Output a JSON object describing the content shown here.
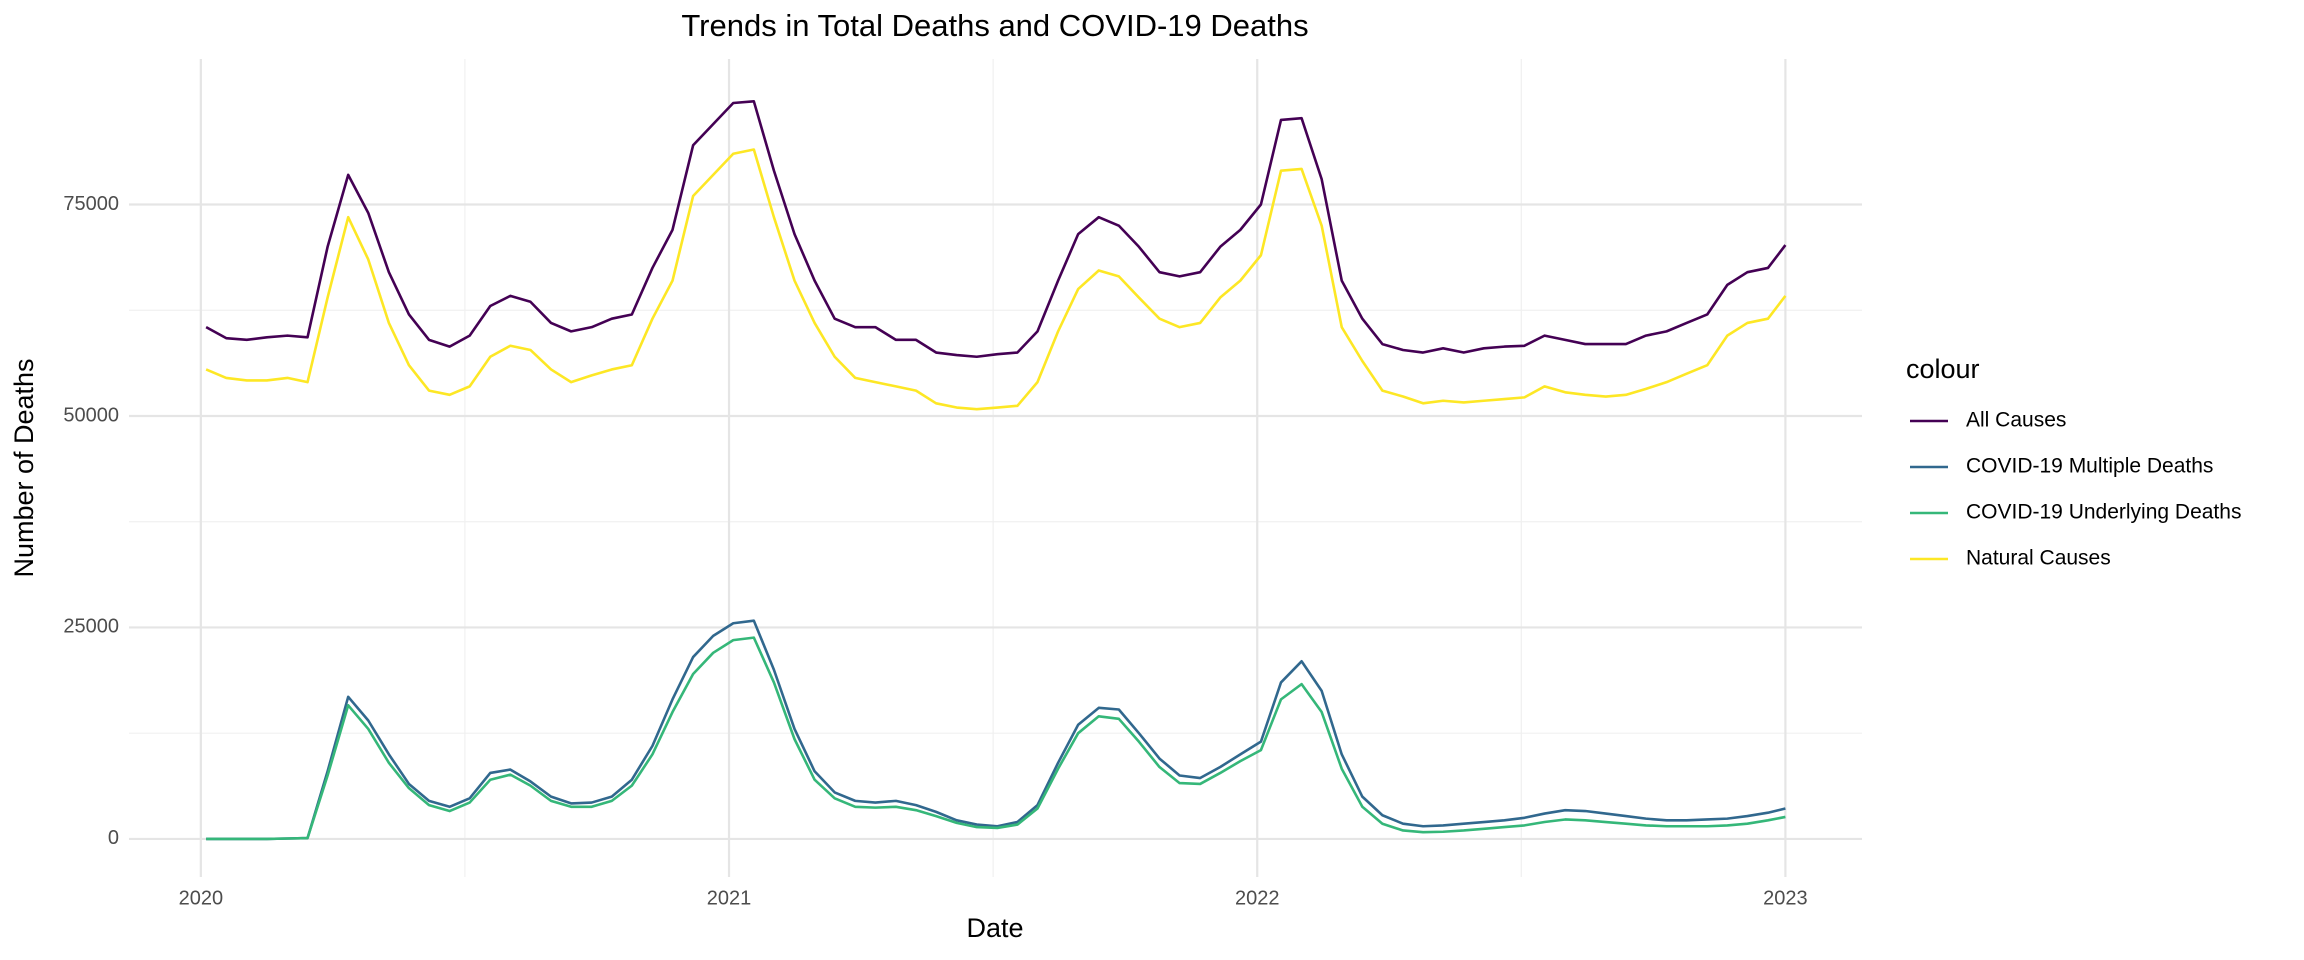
{
  "chart_data": {
    "type": "line",
    "title": "Trends in Total Deaths and COVID-19 Deaths",
    "x_label": "Date",
    "y_label": "Number of Deaths",
    "legend_title": "colour",
    "legend": "right",
    "grid": true,
    "xlim": [
      2019.864,
      2023.145
    ],
    "xticks": [
      2020,
      2021,
      2022,
      2023
    ],
    "ylim": [
      -4500,
      92200
    ],
    "yticks": [
      0,
      25000,
      50000,
      75000
    ],
    "x": [
      2020.01,
      2020.048,
      2020.087,
      2020.125,
      2020.164,
      2020.202,
      2020.24,
      2020.279,
      2020.317,
      2020.356,
      2020.394,
      2020.432,
      2020.471,
      2020.509,
      2020.548,
      2020.586,
      2020.624,
      2020.663,
      2020.701,
      2020.74,
      2020.778,
      2020.816,
      2020.855,
      2020.893,
      2020.932,
      2020.97,
      2021.008,
      2021.047,
      2021.085,
      2021.124,
      2021.162,
      2021.2,
      2021.239,
      2021.277,
      2021.316,
      2021.354,
      2021.392,
      2021.431,
      2021.469,
      2021.508,
      2021.546,
      2021.584,
      2021.623,
      2021.661,
      2021.7,
      2021.738,
      2021.776,
      2021.815,
      2021.853,
      2021.892,
      2021.93,
      2021.968,
      2022.007,
      2022.045,
      2022.084,
      2022.122,
      2022.16,
      2022.199,
      2022.237,
      2022.276,
      2022.314,
      2022.352,
      2022.391,
      2022.429,
      2022.468,
      2022.506,
      2022.544,
      2022.583,
      2022.621,
      2022.66,
      2022.698,
      2022.736,
      2022.775,
      2022.813,
      2022.852,
      2022.89,
      2022.928,
      2022.967,
      2023.0
    ],
    "series": [
      {
        "name": "All Causes",
        "color": "#440154",
        "values": [
          60500,
          59200,
          59000,
          59300,
          59500,
          59300,
          70000,
          78500,
          74000,
          67000,
          62000,
          59000,
          58200,
          59500,
          63000,
          64200,
          63500,
          61000,
          60000,
          60500,
          61500,
          62000,
          67500,
          72000,
          82000,
          84500,
          87000,
          87200,
          79000,
          71500,
          66000,
          61500,
          60500,
          60500,
          59000,
          59000,
          57500,
          57200,
          57000,
          57300,
          57500,
          60000,
          66000,
          71500,
          73500,
          72500,
          70000,
          67000,
          66500,
          67000,
          70000,
          72000,
          75000,
          85000,
          85200,
          78000,
          66000,
          61500,
          58500,
          57800,
          57500,
          58000,
          57500,
          58000,
          58200,
          58300,
          59500,
          59000,
          58500,
          58500,
          58500,
          59500,
          60000,
          61000,
          62000,
          65500,
          67000,
          67500,
          70200
        ]
      },
      {
        "name": "COVID-19 Multiple Deaths",
        "color": "#31688e",
        "values": [
          0,
          0,
          0,
          0,
          50,
          100,
          8000,
          16800,
          14000,
          10000,
          6500,
          4500,
          3800,
          4800,
          7800,
          8200,
          6800,
          5000,
          4200,
          4300,
          5000,
          7000,
          11000,
          16500,
          21500,
          24000,
          25500,
          25800,
          20000,
          13000,
          8000,
          5500,
          4500,
          4300,
          4500,
          4000,
          3200,
          2200,
          1700,
          1500,
          2000,
          4000,
          9000,
          13500,
          15500,
          15300,
          12500,
          9500,
          7500,
          7200,
          8500,
          10000,
          11500,
          18500,
          21000,
          17500,
          10000,
          5000,
          2800,
          1800,
          1500,
          1600,
          1800,
          2000,
          2200,
          2500,
          3000,
          3400,
          3300,
          3000,
          2700,
          2400,
          2200,
          2200,
          2300,
          2400,
          2700,
          3100,
          3600
        ]
      },
      {
        "name": "COVID-19 Underlying Deaths",
        "color": "#35b779",
        "values": [
          0,
          0,
          0,
          0,
          50,
          100,
          7500,
          15800,
          13000,
          9000,
          6000,
          4000,
          3300,
          4300,
          7000,
          7600,
          6300,
          4500,
          3800,
          3800,
          4500,
          6300,
          10000,
          15000,
          19500,
          22000,
          23500,
          23800,
          18500,
          11800,
          7000,
          4800,
          3800,
          3700,
          3800,
          3400,
          2700,
          1900,
          1400,
          1300,
          1700,
          3600,
          8300,
          12500,
          14500,
          14200,
          11500,
          8500,
          6600,
          6500,
          7800,
          9200,
          10500,
          16500,
          18300,
          15000,
          8300,
          3800,
          1800,
          1000,
          800,
          850,
          1000,
          1200,
          1400,
          1600,
          2000,
          2300,
          2200,
          2000,
          1800,
          1600,
          1500,
          1500,
          1500,
          1600,
          1800,
          2200,
          2600
        ]
      },
      {
        "name": "Natural Causes",
        "color": "#fde725",
        "values": [
          55500,
          54500,
          54200,
          54200,
          54500,
          54000,
          64000,
          73500,
          68500,
          61000,
          56000,
          53000,
          52500,
          53500,
          57000,
          58300,
          57800,
          55500,
          54000,
          54800,
          55500,
          56000,
          61500,
          66000,
          76000,
          78500,
          81000,
          81500,
          73500,
          66000,
          61000,
          57000,
          54500,
          54000,
          53500,
          53000,
          51500,
          51000,
          50800,
          51000,
          51200,
          54000,
          60000,
          65000,
          67200,
          66500,
          64000,
          61500,
          60500,
          61000,
          64000,
          66000,
          69000,
          79000,
          79200,
          72500,
          60500,
          56500,
          53000,
          52300,
          51500,
          51800,
          51600,
          51800,
          52000,
          52200,
          53500,
          52800,
          52500,
          52300,
          52500,
          53200,
          54000,
          55000,
          56000,
          59500,
          61000,
          61500,
          64200
        ]
      }
    ]
  }
}
